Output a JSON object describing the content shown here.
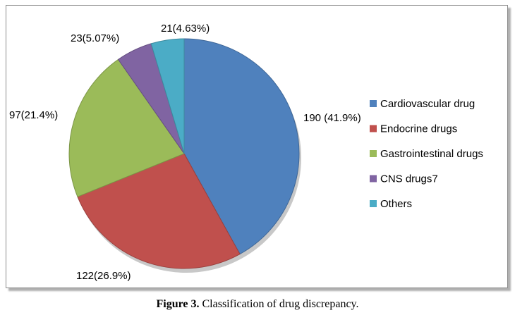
{
  "chart_data": {
    "type": "pie",
    "categories": [
      "Cardiovascular drug",
      "Endocrine drugs",
      "Gastrointestinal drugs",
      "CNS drugs7",
      "Others"
    ],
    "values": [
      190,
      122,
      97,
      23,
      21
    ],
    "percentages": [
      41.9,
      26.9,
      21.4,
      5.07,
      4.63
    ],
    "data_labels": [
      "190 (41.9%)",
      "122(26.9%)",
      "97(21.4%)",
      "23(5.07%)",
      "21(4.63%)"
    ],
    "colors": [
      "#4f81bd",
      "#c0504d",
      "#9bbb59",
      "#8064a2",
      "#4bacc6"
    ],
    "legend_position": "right"
  },
  "caption": {
    "label": "Figure 3.",
    "text": " Classification of drug discrepancy."
  }
}
